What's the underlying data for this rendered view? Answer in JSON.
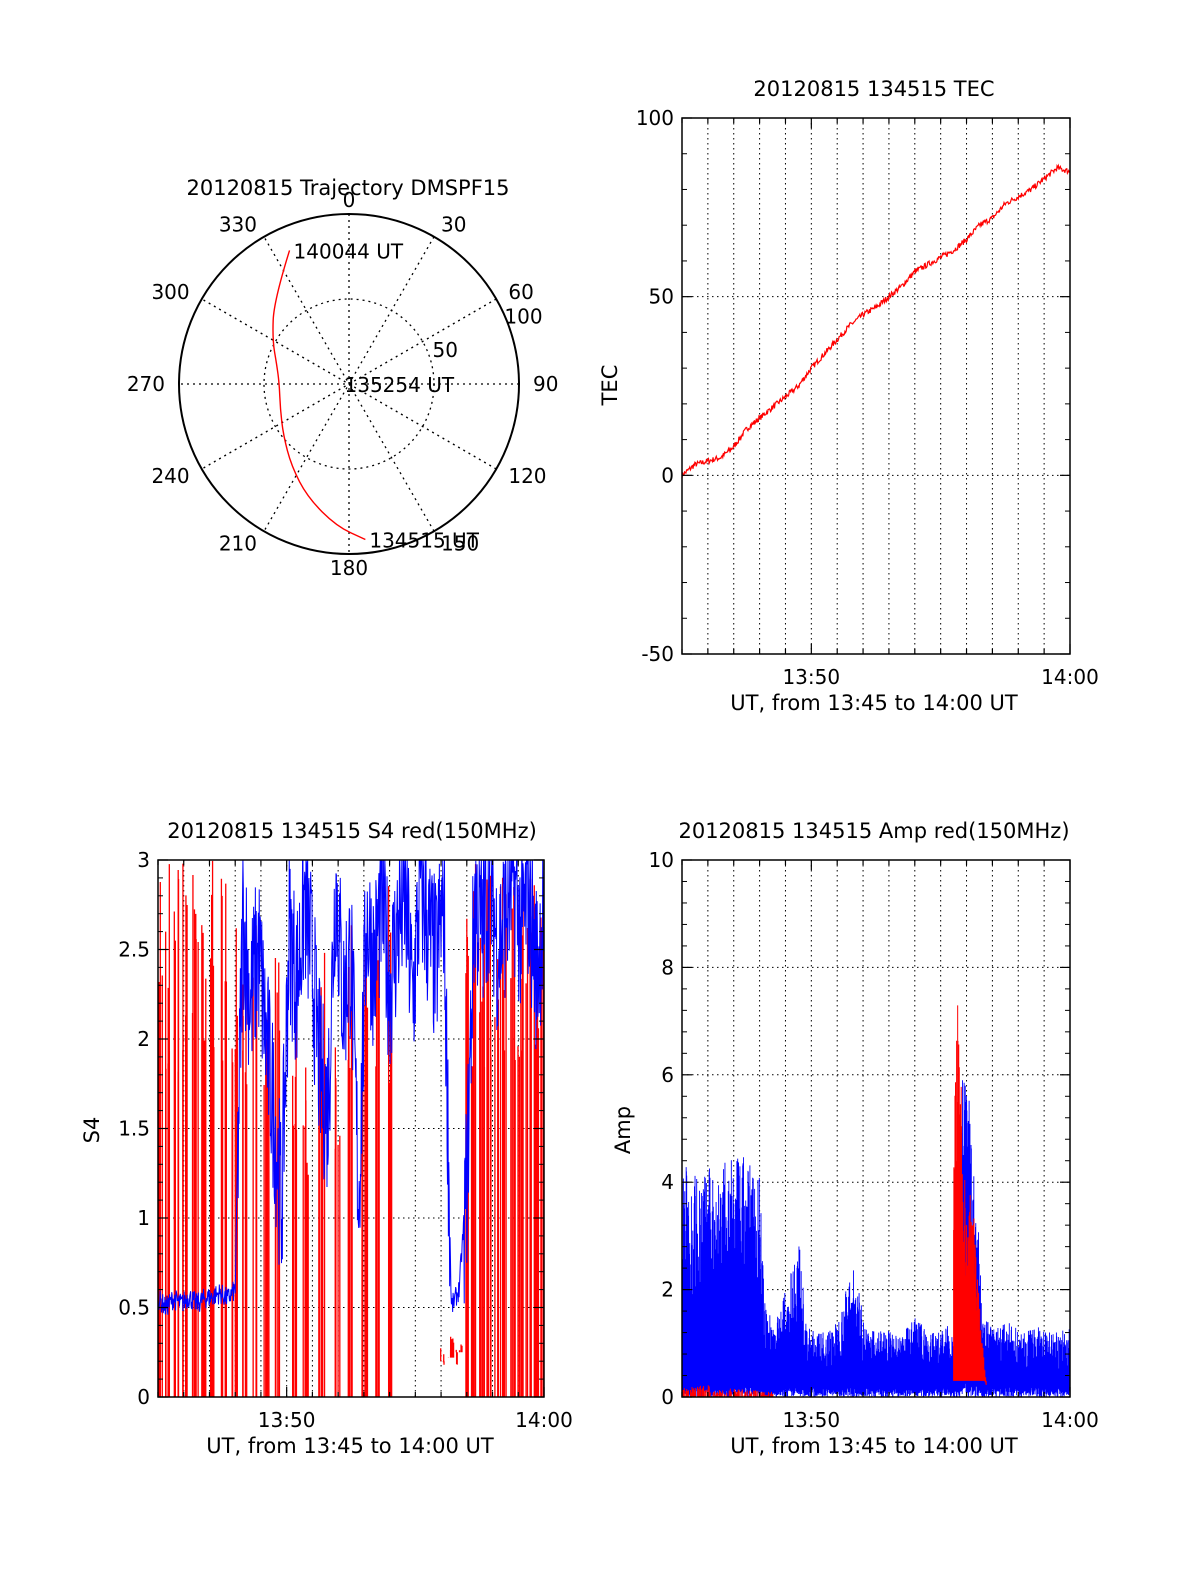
{
  "colors": {
    "red": "#ff0000",
    "blue": "#0000ff",
    "axis": "#000000",
    "grid": "#000000"
  },
  "chart_data": [
    {
      "type": "polar",
      "title": "20120815 Trajectory DMSPF15",
      "angle_ticks": [
        "0",
        "30",
        "60",
        "90",
        "120",
        "150",
        "180",
        "210",
        "240",
        "270",
        "300",
        "330"
      ],
      "angle_tick_values": [
        0,
        30,
        60,
        90,
        120,
        150,
        180,
        210,
        240,
        270,
        300,
        330
      ],
      "radial_tick_labels": [
        "50",
        "100"
      ],
      "radial_ticks": [
        50,
        100
      ],
      "rmax": 100,
      "grid": true,
      "annotations": [
        {
          "text": "140044 UT",
          "az": 336,
          "r": 86
        },
        {
          "text": "135254 UT",
          "az": 270,
          "r": 5
        },
        {
          "text": "134515 UT",
          "az": 174,
          "r": 92
        }
      ],
      "series": [
        {
          "color": "red",
          "points": [
            {
              "az": 336,
              "r": 86
            },
            {
              "az": 318,
              "r": 66
            },
            {
              "az": 300,
              "r": 52
            },
            {
              "az": 285,
              "r": 44
            },
            {
              "az": 270,
              "r": 41
            },
            {
              "az": 250,
              "r": 43
            },
            {
              "az": 232,
              "r": 49
            },
            {
              "az": 215,
              "r": 59
            },
            {
              "az": 200,
              "r": 71
            },
            {
              "az": 185,
              "r": 84
            },
            {
              "az": 174,
              "r": 92
            }
          ]
        }
      ]
    },
    {
      "type": "line",
      "title": "20120815 134515 TEC",
      "xlabel": "UT, from 13:45 to 14:00 UT",
      "ylabel": "TEC",
      "xlim": [
        13.75,
        14.0
      ],
      "ylim": [
        -50,
        100
      ],
      "xticks": [
        13.8333,
        14.0
      ],
      "xtick_labels": [
        "13:50",
        "14:00"
      ],
      "yticks": [
        -50,
        0,
        50,
        100
      ],
      "ytick_labels": [
        "-50",
        "0",
        "50",
        "100"
      ],
      "grid": true,
      "series": [
        {
          "color": "red",
          "x": [
            13.75,
            13.7583,
            13.7667,
            13.775,
            13.7833,
            13.7917,
            13.8,
            13.8083,
            13.8167,
            13.825,
            13.8333,
            13.8417,
            13.85,
            13.8583,
            13.8667,
            13.875,
            13.8833,
            13.8917,
            13.9,
            13.9083,
            13.9167,
            13.925,
            13.9333,
            13.9417,
            13.95,
            13.9583,
            13.9667,
            13.975,
            13.9833,
            13.9917,
            14.0
          ],
          "y": [
            0,
            3,
            4,
            5,
            8,
            13,
            16,
            19,
            22,
            25,
            30,
            34,
            38,
            42,
            45,
            47,
            50,
            53,
            57,
            59,
            61,
            63,
            66,
            70,
            72,
            76,
            78,
            80,
            83,
            86,
            85
          ]
        }
      ]
    },
    {
      "type": "line",
      "title": "20120815 134515 S4 red(150MHz)",
      "xlabel": "UT, from 13:45 to 14:00 UT",
      "ylabel": "S4",
      "xlim": [
        13.75,
        14.0
      ],
      "ylim": [
        0,
        3
      ],
      "xticks": [
        13.8333,
        14.0
      ],
      "xtick_labels": [
        "13:50",
        "14:00"
      ],
      "yticks": [
        0,
        0.5,
        1,
        1.5,
        2,
        2.5,
        3
      ],
      "ytick_labels": [
        "0",
        "0.5",
        "1",
        "1.5",
        "2",
        "2.5",
        "3"
      ],
      "grid": true,
      "series": [
        {
          "color": "red",
          "segments": [
            {
              "x": [
                13.751,
                13.756,
                13.762,
                13.768,
                13.774,
                13.779,
                13.786,
                13.793,
                13.8
              ],
              "y_low": [
                0,
                0,
                0,
                0,
                0,
                0,
                0,
                0,
                0
              ],
              "y_high": [
                3,
                3,
                3,
                3,
                3,
                3,
                3,
                3,
                3
              ]
            },
            {
              "x": [
                13.806,
                13.812,
                13.82,
                13.828,
                13.838,
                13.846,
                13.856,
                13.866,
                13.875,
                13.884,
                13.892,
                13.9
              ],
              "y_low": [
                0,
                0,
                0,
                0,
                0,
                0,
                0,
                0,
                0,
                0,
                0,
                0
              ],
              "y_high": [
                2.6,
                2.8,
                2.2,
                2.5,
                2.4,
                2.0,
                2.6,
                2.3,
                2.7,
                2.5,
                2.8,
                2.9
              ]
            },
            {
              "x": [
                13.935,
                13.94,
                13.945
              ],
              "y_low": [
                0.2,
                0.22,
                0.25
              ],
              "y_high": [
                0.3,
                0.35,
                0.3
              ]
            },
            {
              "x": [
                13.95,
                13.955,
                13.96,
                13.965,
                13.97,
                13.975,
                13.98,
                13.985,
                13.99,
                13.995,
                14.0
              ],
              "y_low": [
                0,
                0,
                0,
                0,
                0,
                0,
                0,
                0,
                0,
                0,
                0
              ],
              "y_high": [
                3,
                3,
                3,
                3,
                3,
                3,
                3,
                3,
                3,
                3,
                3
              ]
            }
          ]
        },
        {
          "color": "blue",
          "x": [
            13.75,
            13.755,
            13.76,
            13.765,
            13.77,
            13.775,
            13.78,
            13.785,
            13.79,
            13.795,
            13.8,
            13.805,
            13.81,
            13.815,
            13.82,
            13.825,
            13.83,
            13.835,
            13.84,
            13.845,
            13.85,
            13.855,
            13.86,
            13.865,
            13.87,
            13.875,
            13.88,
            13.885,
            13.89,
            13.895,
            13.9,
            13.905,
            13.91,
            13.915,
            13.92,
            13.925,
            13.93,
            13.935,
            13.94,
            13.945,
            13.95,
            13.955,
            13.96,
            13.965,
            13.97,
            13.975,
            13.98,
            13.985,
            13.99,
            13.995,
            14.0
          ],
          "y": [
            0.55,
            0.5,
            0.55,
            0.52,
            0.56,
            0.52,
            0.55,
            0.56,
            0.58,
            0.55,
            0.6,
            2.7,
            2.2,
            2.5,
            2.0,
            1.6,
            1.05,
            2.6,
            2.3,
            2.8,
            2.4,
            1.8,
            1.6,
            2.9,
            2.2,
            2.5,
            1.1,
            2.7,
            2.4,
            2.8,
            2.3,
            2.6,
            2.8,
            2.2,
            2.9,
            2.6,
            2.4,
            2.8,
            0.5,
            0.6,
            1.2,
            2.8,
            2.6,
            2.9,
            2.5,
            2.7,
            2.9,
            2.6,
            2.8,
            2.4,
            2.7
          ]
        }
      ]
    },
    {
      "type": "line",
      "title": "20120815 134515 Amp red(150MHz)",
      "xlabel": "UT, from 13:45 to 14:00 UT",
      "ylabel": "Amp",
      "xlim": [
        13.75,
        14.0
      ],
      "ylim": [
        0,
        10
      ],
      "xticks": [
        13.8333,
        14.0
      ],
      "xtick_labels": [
        "13:50",
        "14:00"
      ],
      "yticks": [
        0,
        2,
        4,
        6,
        8,
        10
      ],
      "ytick_labels": [
        "0",
        "2",
        "4",
        "6",
        "8",
        "10"
      ],
      "grid": true,
      "series": [
        {
          "color": "blue",
          "x": [
            13.75,
            13.76,
            13.77,
            13.78,
            13.79,
            13.8,
            13.803,
            13.81,
            13.82,
            13.825,
            13.83,
            13.84,
            13.85,
            13.86,
            13.87,
            13.88,
            13.89,
            13.9,
            13.91,
            13.92,
            13.925,
            13.93,
            13.935,
            13.94,
            13.945,
            13.95,
            13.96,
            13.97,
            13.98,
            13.99,
            14.0
          ],
          "y_high": [
            4.4,
            4.2,
            4.3,
            4.4,
            4.5,
            4.3,
            1.8,
            1.4,
            2.3,
            3.2,
            1.3,
            1.2,
            1.4,
            2.5,
            1.2,
            1.3,
            1.1,
            1.5,
            1.2,
            1.3,
            1.4,
            6.0,
            5.6,
            3.5,
            1.5,
            1.3,
            1.4,
            1.2,
            1.3,
            1.2,
            1.3
          ],
          "y_low": [
            0.2,
            0.2,
            0.2,
            0.2,
            0.2,
            0.2,
            0.1,
            0.1,
            0.2,
            0.2,
            0.2,
            0.2,
            0.2,
            0.2,
            0.2,
            0.2,
            0.2,
            0.2,
            0.2,
            0.2,
            0.2,
            0.3,
            0.3,
            0.3,
            0.2,
            0.2,
            0.2,
            0.2,
            0.2,
            0.2,
            0.2
          ]
        },
        {
          "color": "red",
          "x": [
            13.75,
            13.76,
            13.77,
            13.78,
            13.79,
            13.8,
            13.925,
            13.928,
            13.931,
            13.934,
            13.937,
            13.94,
            13.943,
            13.946
          ],
          "y": [
            0.15,
            0.18,
            0.1,
            0.12,
            0.1,
            0.08,
            5.5,
            7.6,
            4.8,
            3.0,
            4.4,
            2.5,
            1.2,
            0.3
          ]
        }
      ]
    }
  ]
}
